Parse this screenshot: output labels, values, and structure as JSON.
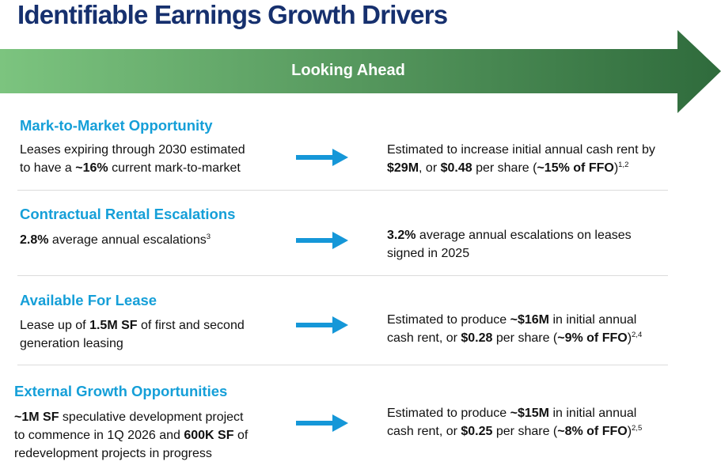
{
  "title": "Identifiable Earnings Growth Drivers",
  "banner": "Looking Ahead",
  "colors": {
    "title": "#16306e",
    "section_title": "#159fd8",
    "arrow": "#1597d8",
    "banner_light": "#7cc47f",
    "banner_dark": "#2f6b3c"
  },
  "sections": [
    {
      "title": "Mark-to-Market Opportunity",
      "left": {
        "line1": "Leases expiring through 2030 estimated",
        "line2_a": "to have a ",
        "line2_b": "~16%",
        "line2_c": " current mark-to-market"
      },
      "right": {
        "line1": "Estimated to increase initial annual cash rent by",
        "line2_a": "$29M",
        "line2_b": ", or ",
        "line2_c": "$0.48",
        "line2_d": " per share (",
        "line2_e": "~15% of FFO",
        "line2_f": ")",
        "sup": "1,2"
      }
    },
    {
      "title": "Contractual Rental Escalations",
      "left": {
        "line1_a": "2.8%",
        "line1_b": " average annual escalations",
        "sup": "3"
      },
      "right": {
        "line1_a": "3.2%",
        "line1_b": " average annual escalations on leases",
        "line2": "signed in 2025"
      }
    },
    {
      "title": "Available For Lease",
      "left": {
        "line1_a": "Lease up of ",
        "line1_b": "1.5M SF",
        "line1_c": " of first and second",
        "line2": "generation leasing"
      },
      "right": {
        "line1_a": "Estimated to produce ",
        "line1_b": "~$16M",
        "line1_c": " in initial annual",
        "line2_a": "cash rent, or ",
        "line2_b": "$0.28",
        "line2_c": " per share (",
        "line2_d": "~9% of FFO",
        "line2_e": ")",
        "sup": "2,4"
      }
    },
    {
      "title": "External Growth Opportunities",
      "left": {
        "line1_a": "~1M SF",
        "line1_b": " speculative development project",
        "line2_a": "to commence in 1Q 2026 and ",
        "line2_b": "600K SF",
        "line2_c": " of",
        "line3": "redevelopment projects in progress"
      },
      "right": {
        "line1_a": "Estimated to produce ",
        "line1_b": "~$15M",
        "line1_c": " in initial annual",
        "line2_a": "cash rent, or ",
        "line2_b": "$0.25",
        "line2_c": " per share (",
        "line2_d": "~8% of FFO",
        "line2_e": ")",
        "sup": "2,5"
      }
    }
  ]
}
